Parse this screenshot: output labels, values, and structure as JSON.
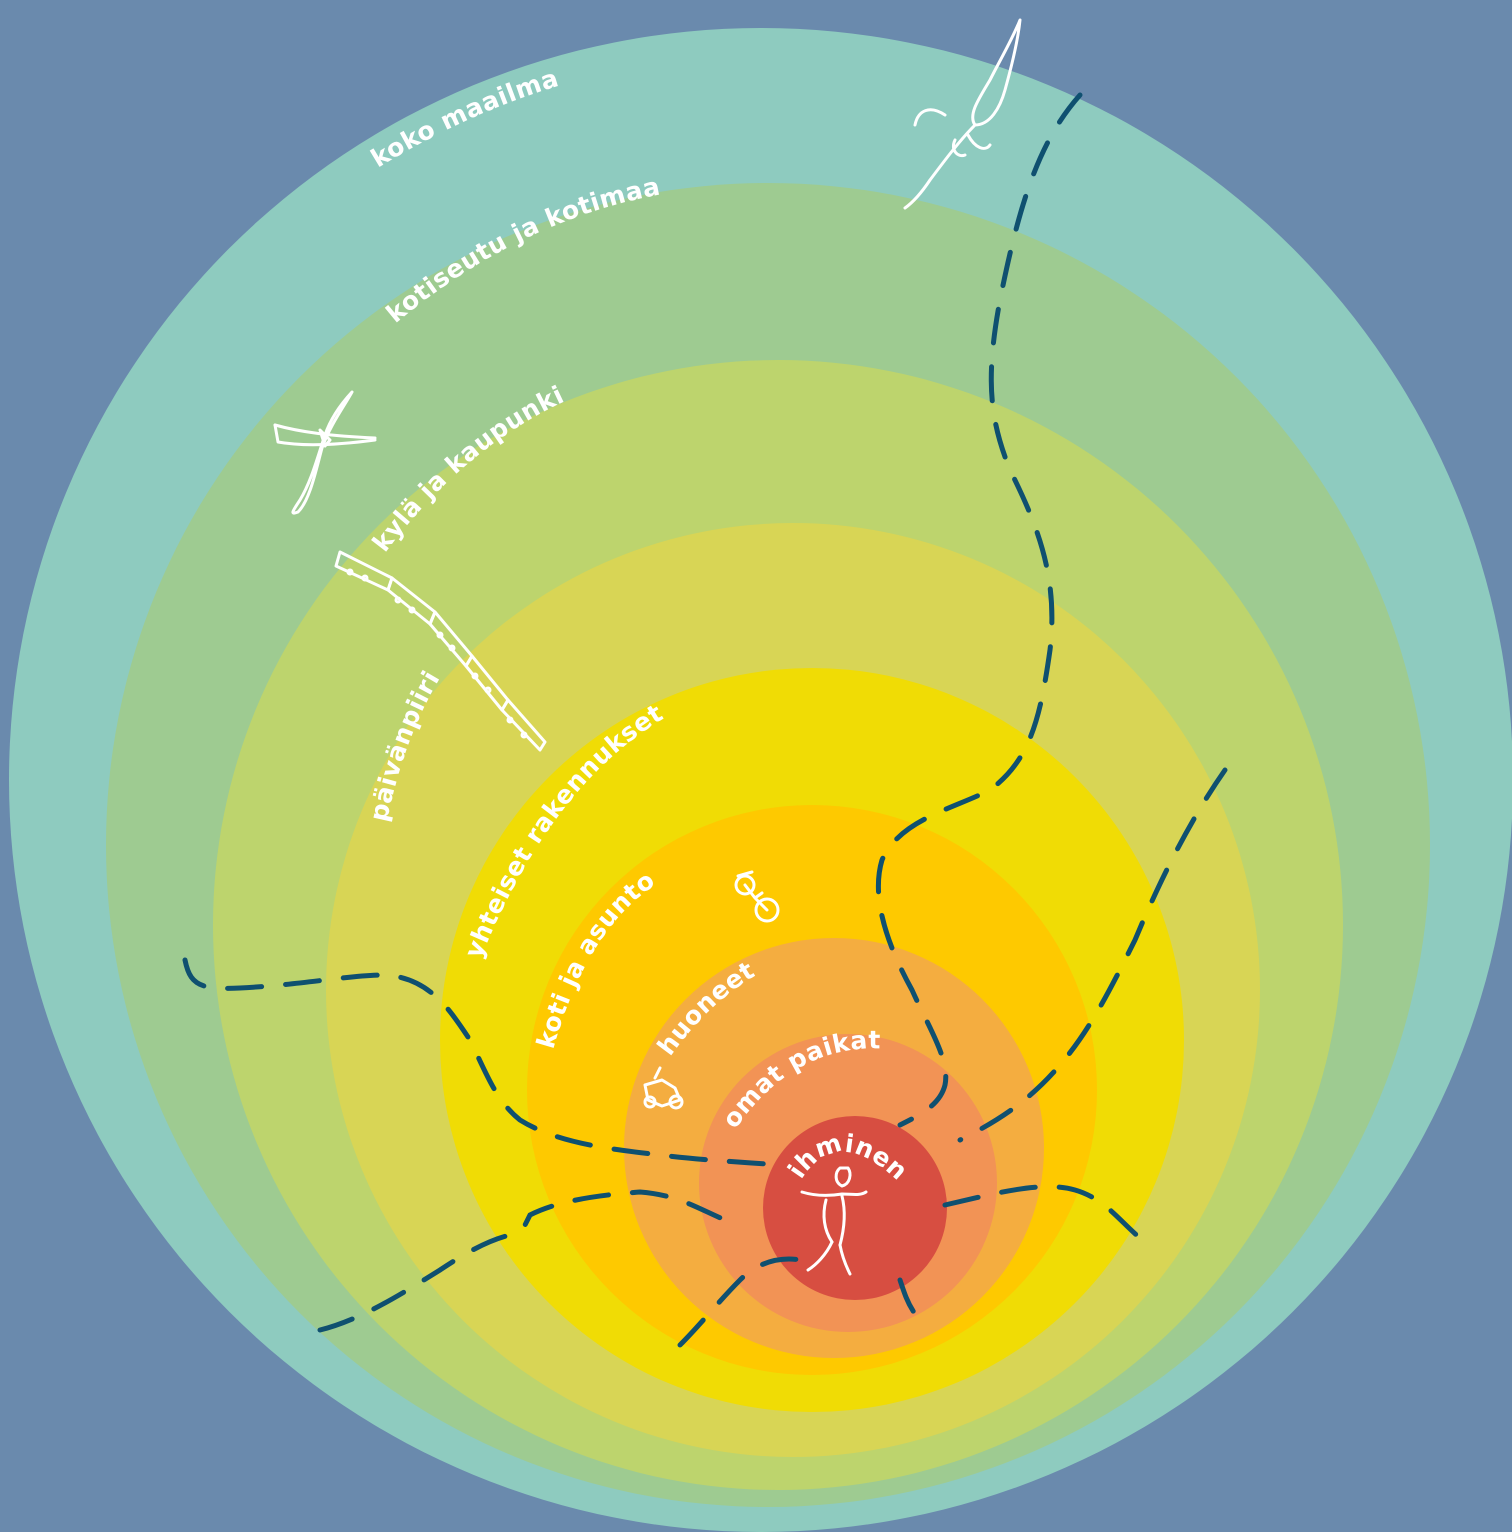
{
  "colors": {
    "background": "#6a8aad",
    "dashed_path": "#0f5070",
    "sketch": "#ffffff"
  },
  "rings": [
    {
      "label": "koko maailma",
      "color": "#8ecbbf"
    },
    {
      "label": "kotiseutu ja kotimaa",
      "color": "#9ecb91"
    },
    {
      "label": "kylä ja kaupunki",
      "color": "#bdd46d"
    },
    {
      "label": "päivänpiiri",
      "color": "#d8d555"
    },
    {
      "label": "yhteiset rakennukset",
      "color": "#f0dc05"
    },
    {
      "label": "koti ja asunto",
      "color": "#fec900"
    },
    {
      "label": "huoneet",
      "color": "#f4ad40"
    },
    {
      "label": "omat paikat",
      "color": "#f29355"
    },
    {
      "label": "ihminen",
      "color": "#d74e41"
    }
  ],
  "icons": [
    "rocket-icon",
    "airplane-icon",
    "train-icon",
    "bicycle-icon",
    "toy-car-icon",
    "person-icon"
  ]
}
